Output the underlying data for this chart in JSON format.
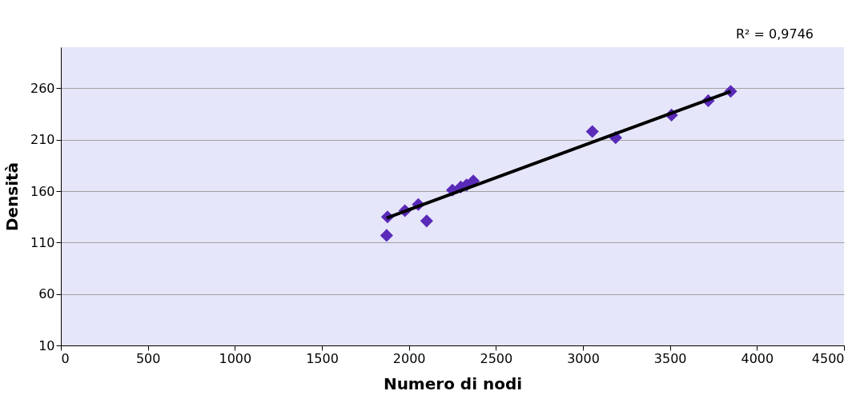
{
  "chart_data": {
    "type": "scatter",
    "xlabel": "Numero di nodi",
    "ylabel": "Densità",
    "xlim": [
      0,
      4500
    ],
    "xticks": [
      0,
      500,
      1000,
      1500,
      2000,
      2500,
      3000,
      3500,
      4000,
      4500
    ],
    "ylim": [
      10,
      300
    ],
    "yticks": [
      10,
      60,
      110,
      160,
      210,
      260
    ],
    "grid": "y",
    "legend": false,
    "marker": "diamond",
    "annotations": [
      "R² = 0,9746"
    ],
    "series": [
      {
        "color": "#5a2ab8",
        "x": [
          1872,
          1877,
          1977,
          2054,
          2102,
          2250,
          2298,
          2331,
          2370,
          3054,
          3188,
          3509,
          3720,
          3849
        ],
        "values": [
          117,
          135,
          141,
          147,
          131,
          161,
          164,
          166,
          170,
          218,
          212,
          234,
          248,
          257
        ]
      },
      {
        "type": "line",
        "marker": "none",
        "color": "#000000",
        "x": [
          1872,
          3849
        ],
        "values": [
          134,
          257
        ]
      }
    ]
  }
}
